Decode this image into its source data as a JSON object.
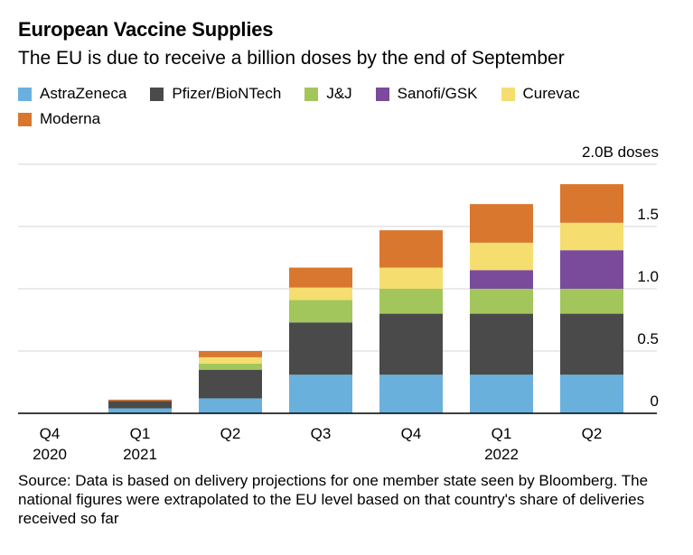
{
  "title": "European Vaccine Supplies",
  "subtitle": "The EU is due to receive a billion doses by the end of September",
  "source": "Source: Data is based on delivery projections for one member state seen by Bloomberg. The national figures were extrapolated to the EU level based on that country's share of deliveries received so far",
  "chart_data": {
    "type": "bar",
    "stacked": true,
    "categories": [
      "Q4 2020",
      "Q1 2021",
      "Q2",
      "Q3",
      "Q4",
      "Q1 2022",
      "Q2"
    ],
    "category_labels": [
      [
        "Q4",
        "2020"
      ],
      [
        "Q1",
        "2021"
      ],
      [
        "Q2"
      ],
      [
        "Q3"
      ],
      [
        "Q4"
      ],
      [
        "Q1",
        "2022"
      ],
      [
        "Q2"
      ]
    ],
    "series": [
      {
        "name": "AstraZeneca",
        "color": "#6ab0dd",
        "values": [
          0.0,
          0.04,
          0.12,
          0.31,
          0.31,
          0.31,
          0.31
        ]
      },
      {
        "name": "Pfizer/BioNTech",
        "color": "#4a4a4a",
        "values": [
          0.0,
          0.06,
          0.23,
          0.42,
          0.49,
          0.49,
          0.49
        ]
      },
      {
        "name": "J&J",
        "color": "#a3c65c",
        "values": [
          0.0,
          0.0,
          0.05,
          0.18,
          0.2,
          0.2,
          0.2
        ]
      },
      {
        "name": "Sanofi/GSK",
        "color": "#7a4b9b",
        "values": [
          0.0,
          0.0,
          0.0,
          0.0,
          0.0,
          0.15,
          0.31
        ]
      },
      {
        "name": "Curevac",
        "color": "#f5de6f",
        "values": [
          0.0,
          0.0,
          0.05,
          0.1,
          0.17,
          0.22,
          0.22
        ]
      },
      {
        "name": "Moderna",
        "color": "#d9772f",
        "values": [
          0.0,
          0.01,
          0.05,
          0.16,
          0.3,
          0.31,
          0.31
        ]
      }
    ],
    "ylim": [
      0,
      2.0
    ],
    "yticks": [
      0,
      0.5,
      1.0,
      1.5,
      2.0
    ],
    "ytick_labels": [
      "0",
      "0.5",
      "1.0",
      "1.5",
      "2.0B doses"
    ],
    "grid": true,
    "y_axis_side": "right",
    "legend_position": "top"
  }
}
